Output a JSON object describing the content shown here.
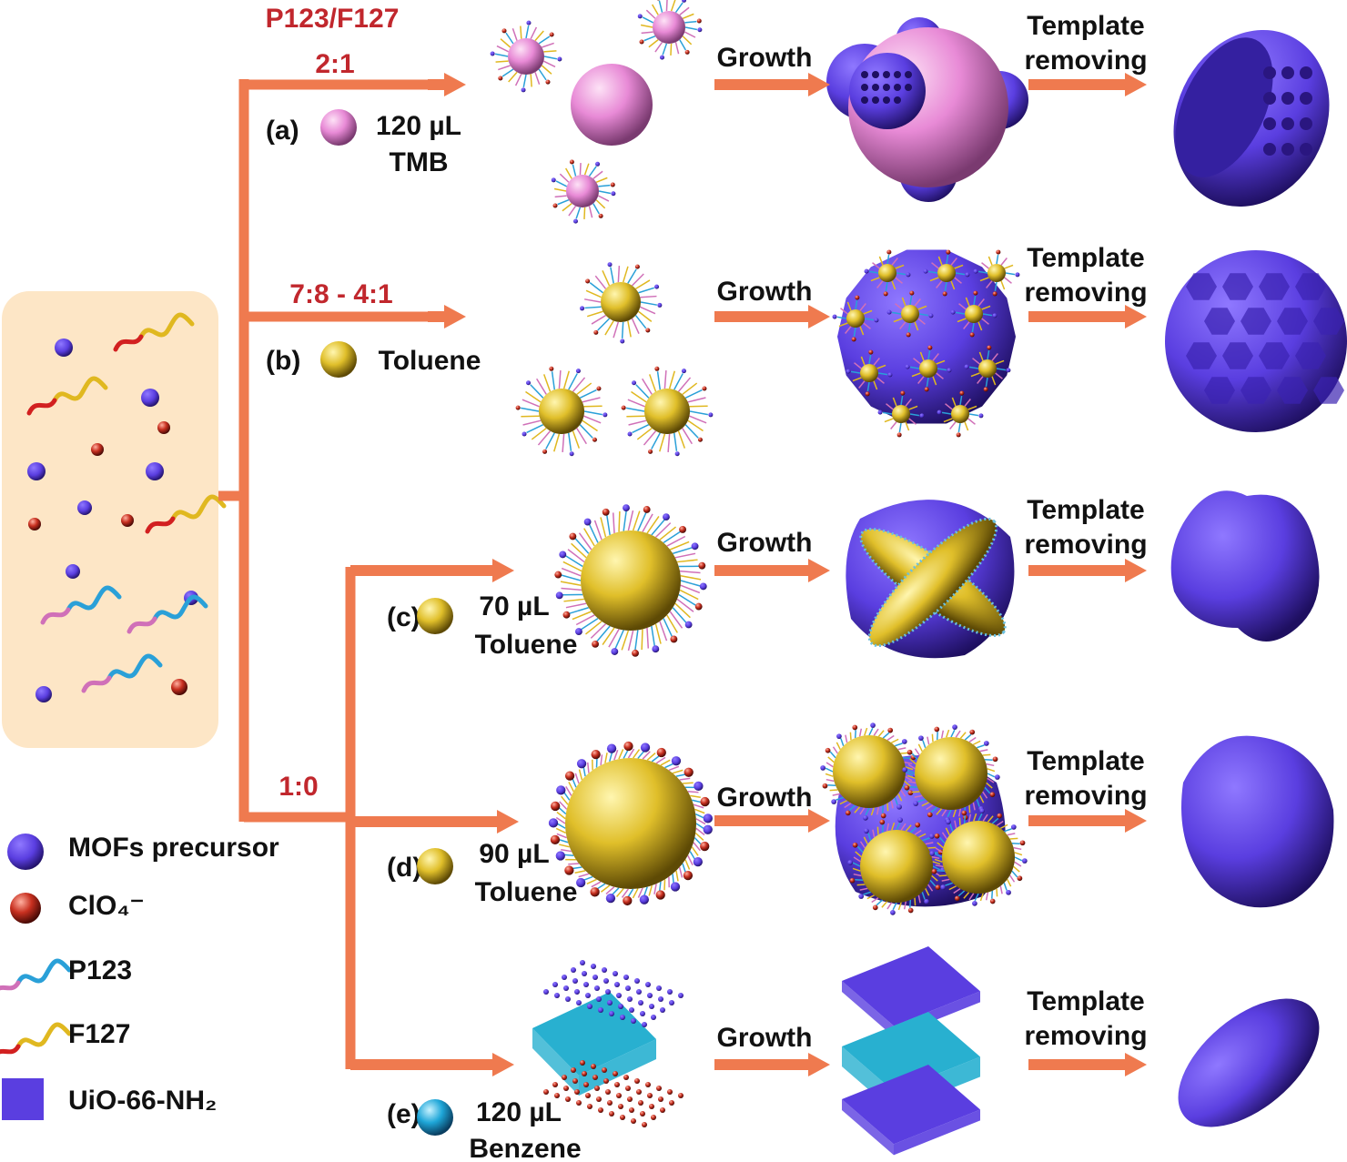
{
  "ratio_title": "P123/F127",
  "shared_ratio": "1:0",
  "branches": [
    {
      "ratio": "2:1",
      "label": "(a)",
      "amount": "120 µL",
      "solvent": "TMB",
      "growth": "Growth",
      "template": [
        "Template",
        "removing"
      ]
    },
    {
      "ratio": "7:8 - 4:1",
      "label": "(b)",
      "solvent": "Toluene",
      "growth": "Growth",
      "template": [
        "Template",
        "removing"
      ]
    },
    {
      "label": "(c)",
      "amount": "70 µL",
      "solvent": "Toluene",
      "growth": "Growth",
      "template": [
        "Template",
        "removing"
      ]
    },
    {
      "label": "(d)",
      "amount": "90 µL",
      "solvent": "Toluene",
      "growth": "Growth",
      "template": [
        "Template",
        "removing"
      ]
    },
    {
      "label": "(e)",
      "amount": "120 µL",
      "solvent": "Benzene",
      "growth": "Growth",
      "template": [
        "Template",
        "removing"
      ]
    }
  ],
  "legend": [
    "MOFs precursor",
    "ClO₄⁻",
    "P123",
    "F127",
    "UiO-66-NH₂"
  ]
}
